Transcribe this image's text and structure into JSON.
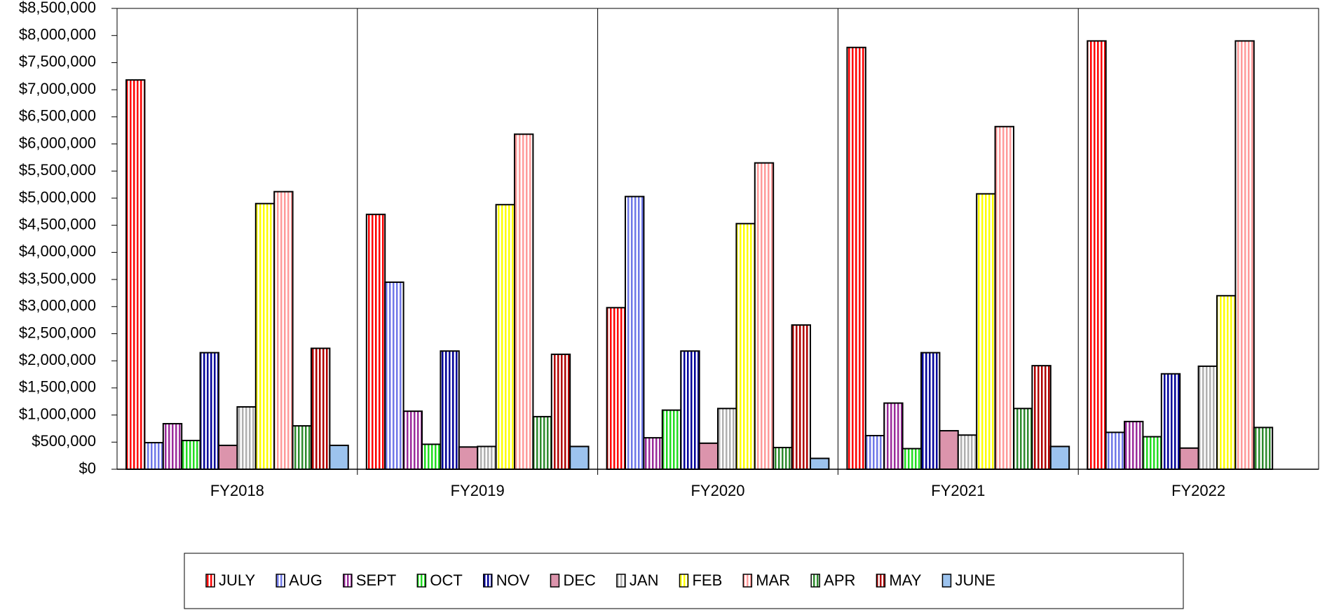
{
  "chart_data": {
    "type": "bar",
    "categories": [
      "FY2018",
      "FY2019",
      "FY2020",
      "FY2021",
      "FY2022"
    ],
    "series": [
      {
        "name": "JULY",
        "color": "#ff0000",
        "hatch": true,
        "values": [
          7180000,
          4700000,
          2980000,
          7780000,
          7900000
        ]
      },
      {
        "name": "AUG",
        "color": "#6f78e8",
        "hatch": true,
        "values": [
          490000,
          3450000,
          5030000,
          620000,
          680000
        ]
      },
      {
        "name": "SEPT",
        "color": "#9b2c9b",
        "hatch": true,
        "values": [
          840000,
          1070000,
          580000,
          1220000,
          880000
        ]
      },
      {
        "name": "OCT",
        "color": "#22dd22",
        "hatch": true,
        "values": [
          530000,
          460000,
          1090000,
          380000,
          600000
        ]
      },
      {
        "name": "NOV",
        "color": "#000099",
        "hatch": true,
        "values": [
          2150000,
          2180000,
          2180000,
          2150000,
          1760000
        ]
      },
      {
        "name": "DEC",
        "color": "#dc94ac",
        "hatch": false,
        "values": [
          440000,
          410000,
          480000,
          710000,
          390000
        ]
      },
      {
        "name": "JAN",
        "color": "#b0b0b0",
        "hatch": true,
        "values": [
          1150000,
          420000,
          1120000,
          630000,
          1900000
        ]
      },
      {
        "name": "FEB",
        "color": "#ffff00",
        "hatch": true,
        "values": [
          4900000,
          4880000,
          4530000,
          5080000,
          3200000
        ]
      },
      {
        "name": "MAR",
        "color": "#ff9a9a",
        "hatch": true,
        "values": [
          5120000,
          6180000,
          5650000,
          6320000,
          7900000
        ]
      },
      {
        "name": "APR",
        "color": "#2e8b2e",
        "hatch": true,
        "values": [
          800000,
          970000,
          400000,
          1120000,
          770000
        ]
      },
      {
        "name": "MAY",
        "color": "#b00000",
        "hatch": true,
        "values": [
          2230000,
          2120000,
          2660000,
          1910000,
          null
        ]
      },
      {
        "name": "JUNE",
        "color": "#9cc3ee",
        "hatch": false,
        "values": [
          440000,
          420000,
          200000,
          420000,
          null
        ]
      }
    ],
    "ylim": [
      0,
      8500000
    ],
    "yticks": [
      {
        "value": 0,
        "label": "$0"
      },
      {
        "value": 500000,
        "label": "$500,000"
      },
      {
        "value": 1000000,
        "label": "$1,000,000"
      },
      {
        "value": 1500000,
        "label": "$1,500,000"
      },
      {
        "value": 2000000,
        "label": "$2,000,000"
      },
      {
        "value": 2500000,
        "label": "$2,500,000"
      },
      {
        "value": 3000000,
        "label": "$3,000,000"
      },
      {
        "value": 3500000,
        "label": "$3,500,000"
      },
      {
        "value": 4000000,
        "label": "$4,000,000"
      },
      {
        "value": 4500000,
        "label": "$4,500,000"
      },
      {
        "value": 5000000,
        "label": "$5,000,000"
      },
      {
        "value": 5500000,
        "label": "$5,500,000"
      },
      {
        "value": 6000000,
        "label": "$6,000,000"
      },
      {
        "value": 6500000,
        "label": "$6,500,000"
      },
      {
        "value": 7000000,
        "label": "$7,000,000"
      },
      {
        "value": 7500000,
        "label": "$7,500,000"
      },
      {
        "value": 8000000,
        "label": "$8,000,000"
      },
      {
        "value": 8500000,
        "label": "$8,500,000"
      }
    ],
    "grid": false,
    "legend": "bottom"
  }
}
